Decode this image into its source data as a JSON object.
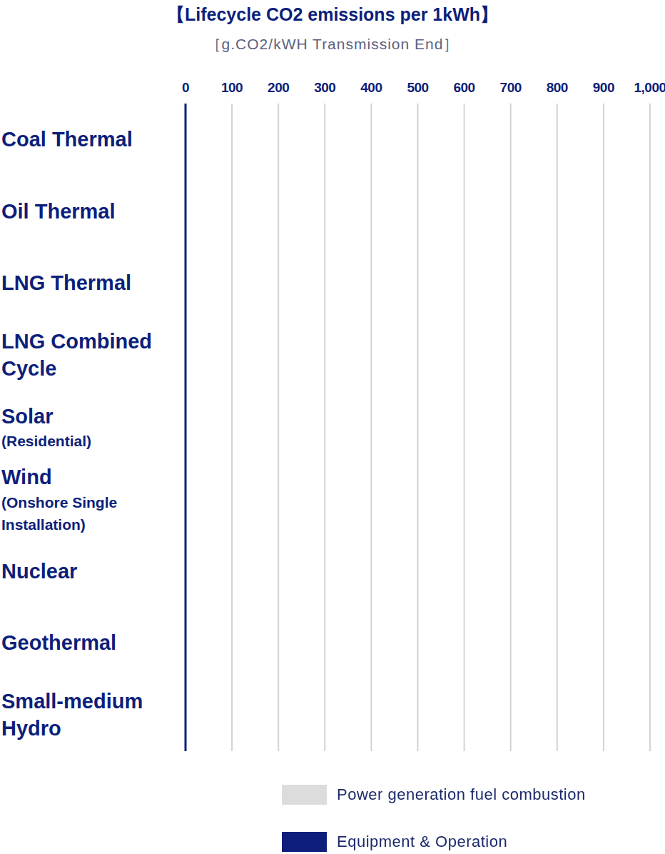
{
  "chart_data": {
    "type": "bar",
    "orientation": "horizontal",
    "stacked": true,
    "title": "【Lifecycle CO2 emissions per 1kWh】",
    "subtitle": "［g.CO2/kWH Transmission End］",
    "categories": [
      "Coal Thermal",
      "Oil Thermal",
      "LNG Thermal",
      "LNG Combined Cycle",
      "Solar (Residential)",
      "Wind (Onshore Single Installation)",
      "Nuclear",
      "Geothermal",
      "Small-medium Hydro"
    ],
    "series": [
      {
        "name": "Power generation fuel combustion",
        "color": "#dcdcdc",
        "values": [
          null,
          null,
          null,
          null,
          null,
          null,
          null,
          null,
          null
        ]
      },
      {
        "name": "Equipment & Operation",
        "color": "#0d1f7a",
        "values": [
          null,
          null,
          null,
          null,
          null,
          null,
          null,
          null,
          null
        ]
      }
    ],
    "xlim": [
      0,
      1000
    ],
    "xticks": [
      0,
      100,
      200,
      300,
      400,
      500,
      600,
      700,
      800,
      900,
      {
        "value": 1000,
        "label": "1,000"
      }
    ],
    "grid": true,
    "legend": "lower right"
  }
}
